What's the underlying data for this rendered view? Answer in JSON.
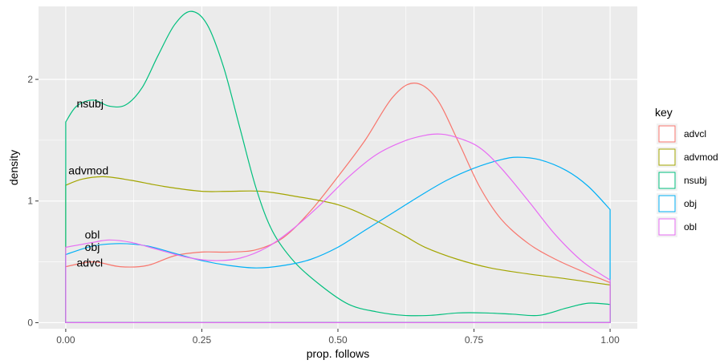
{
  "chart_data": {
    "type": "line",
    "subtype": "density",
    "xlabel": "prop. follows",
    "ylabel": "density",
    "xlim": [
      -0.05,
      1.05
    ],
    "ylim": [
      -0.05,
      2.6
    ],
    "xticks": [
      0.0,
      0.25,
      0.5,
      0.75,
      1.0
    ],
    "xtick_labels": [
      "0.00",
      "0.25",
      "0.50",
      "0.75",
      "1.00"
    ],
    "yticks": [
      0,
      1,
      2
    ],
    "ytick_labels": [
      "0",
      "1",
      "2"
    ],
    "grid": true,
    "legend": {
      "title": "key",
      "position": "right"
    },
    "series": [
      {
        "name": "advcl",
        "color": "#F8766D",
        "label_at": [
          0.02,
          0.46
        ],
        "points": [
          [
            0.0,
            0.46
          ],
          [
            0.05,
            0.5
          ],
          [
            0.1,
            0.46
          ],
          [
            0.15,
            0.47
          ],
          [
            0.2,
            0.55
          ],
          [
            0.25,
            0.58
          ],
          [
            0.3,
            0.58
          ],
          [
            0.35,
            0.6
          ],
          [
            0.4,
            0.7
          ],
          [
            0.45,
            0.92
          ],
          [
            0.5,
            1.2
          ],
          [
            0.55,
            1.5
          ],
          [
            0.6,
            1.85
          ],
          [
            0.64,
            1.97
          ],
          [
            0.68,
            1.85
          ],
          [
            0.72,
            1.5
          ],
          [
            0.76,
            1.12
          ],
          [
            0.8,
            0.85
          ],
          [
            0.85,
            0.65
          ],
          [
            0.9,
            0.52
          ],
          [
            0.95,
            0.42
          ],
          [
            1.0,
            0.33
          ]
        ]
      },
      {
        "name": "advmod",
        "color": "#A3A500",
        "label_at": [
          0.005,
          1.22
        ],
        "points": [
          [
            0.0,
            1.13
          ],
          [
            0.03,
            1.18
          ],
          [
            0.07,
            1.2
          ],
          [
            0.12,
            1.17
          ],
          [
            0.18,
            1.12
          ],
          [
            0.25,
            1.08
          ],
          [
            0.3,
            1.08
          ],
          [
            0.36,
            1.08
          ],
          [
            0.42,
            1.04
          ],
          [
            0.5,
            0.97
          ],
          [
            0.56,
            0.86
          ],
          [
            0.62,
            0.72
          ],
          [
            0.66,
            0.62
          ],
          [
            0.72,
            0.52
          ],
          [
            0.78,
            0.45
          ],
          [
            0.85,
            0.4
          ],
          [
            0.92,
            0.36
          ],
          [
            1.0,
            0.31
          ]
        ]
      },
      {
        "name": "nsubj",
        "color": "#00BF7D",
        "label_at": [
          0.02,
          1.77
        ],
        "points": [
          [
            0.0,
            1.65
          ],
          [
            0.02,
            1.78
          ],
          [
            0.05,
            1.83
          ],
          [
            0.08,
            1.78
          ],
          [
            0.11,
            1.79
          ],
          [
            0.14,
            1.93
          ],
          [
            0.17,
            2.2
          ],
          [
            0.2,
            2.45
          ],
          [
            0.23,
            2.56
          ],
          [
            0.26,
            2.45
          ],
          [
            0.29,
            2.1
          ],
          [
            0.32,
            1.6
          ],
          [
            0.35,
            1.1
          ],
          [
            0.38,
            0.75
          ],
          [
            0.42,
            0.5
          ],
          [
            0.47,
            0.3
          ],
          [
            0.52,
            0.15
          ],
          [
            0.57,
            0.09
          ],
          [
            0.62,
            0.06
          ],
          [
            0.67,
            0.06
          ],
          [
            0.72,
            0.08
          ],
          [
            0.77,
            0.08
          ],
          [
            0.82,
            0.07
          ],
          [
            0.87,
            0.06
          ],
          [
            0.92,
            0.12
          ],
          [
            0.96,
            0.16
          ],
          [
            1.0,
            0.15
          ]
        ]
      },
      {
        "name": "obj",
        "color": "#00B0F6",
        "label_at": [
          0.035,
          0.59
        ],
        "points": [
          [
            0.0,
            0.56
          ],
          [
            0.05,
            0.63
          ],
          [
            0.1,
            0.65
          ],
          [
            0.15,
            0.63
          ],
          [
            0.2,
            0.57
          ],
          [
            0.25,
            0.51
          ],
          [
            0.3,
            0.47
          ],
          [
            0.35,
            0.45
          ],
          [
            0.4,
            0.47
          ],
          [
            0.45,
            0.52
          ],
          [
            0.5,
            0.62
          ],
          [
            0.55,
            0.76
          ],
          [
            0.6,
            0.9
          ],
          [
            0.65,
            1.04
          ],
          [
            0.7,
            1.17
          ],
          [
            0.75,
            1.27
          ],
          [
            0.8,
            1.34
          ],
          [
            0.83,
            1.36
          ],
          [
            0.87,
            1.34
          ],
          [
            0.92,
            1.25
          ],
          [
            0.96,
            1.12
          ],
          [
            1.0,
            0.93
          ]
        ]
      },
      {
        "name": "obl",
        "color": "#E76BF3",
        "label_at": [
          0.035,
          0.69
        ],
        "points": [
          [
            0.0,
            0.62
          ],
          [
            0.05,
            0.66
          ],
          [
            0.08,
            0.68
          ],
          [
            0.12,
            0.66
          ],
          [
            0.17,
            0.6
          ],
          [
            0.22,
            0.54
          ],
          [
            0.27,
            0.51
          ],
          [
            0.32,
            0.53
          ],
          [
            0.37,
            0.62
          ],
          [
            0.42,
            0.78
          ],
          [
            0.47,
            0.98
          ],
          [
            0.52,
            1.2
          ],
          [
            0.57,
            1.38
          ],
          [
            0.62,
            1.49
          ],
          [
            0.66,
            1.54
          ],
          [
            0.69,
            1.55
          ],
          [
            0.72,
            1.52
          ],
          [
            0.76,
            1.44
          ],
          [
            0.8,
            1.27
          ],
          [
            0.85,
            1.0
          ],
          [
            0.9,
            0.72
          ],
          [
            0.95,
            0.5
          ],
          [
            1.0,
            0.35
          ]
        ]
      }
    ]
  }
}
